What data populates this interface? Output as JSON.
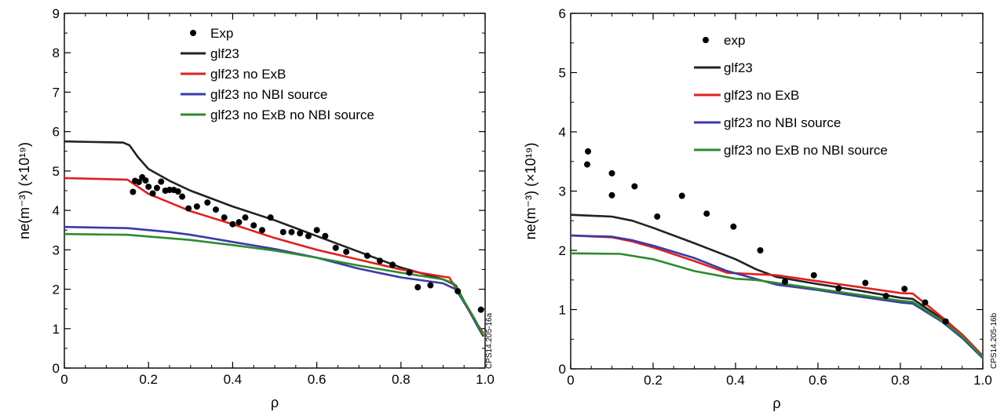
{
  "chart_data": [
    {
      "id": "left",
      "type": "line",
      "xlabel": "ρ",
      "ylabel": "ne(m⁻³) (×10¹⁹)",
      "xlim": [
        0,
        1.0
      ],
      "ylim": [
        0,
        9
      ],
      "xticks": [
        0,
        0.2,
        0.4,
        0.6,
        0.8,
        1.0
      ],
      "xtick_labels": [
        "0",
        "0.2",
        "0.4",
        "0.6",
        "0.8",
        "1.0"
      ],
      "yticks": [
        0,
        1,
        2,
        3,
        4,
        5,
        6,
        7,
        8,
        9
      ],
      "ytick_labels": [
        "0",
        "1",
        "2",
        "3",
        "4",
        "5",
        "6",
        "7",
        "8",
        "9"
      ],
      "legend_position": "top-center",
      "code_label": "CPS14.205-16a",
      "scatter": {
        "name": "Exp",
        "color": "#000000",
        "points": [
          [
            0.163,
            4.47
          ],
          [
            0.168,
            4.75
          ],
          [
            0.177,
            4.72
          ],
          [
            0.185,
            4.84
          ],
          [
            0.193,
            4.76
          ],
          [
            0.2,
            4.6
          ],
          [
            0.21,
            4.43
          ],
          [
            0.22,
            4.57
          ],
          [
            0.23,
            4.73
          ],
          [
            0.24,
            4.5
          ],
          [
            0.25,
            4.52
          ],
          [
            0.26,
            4.52
          ],
          [
            0.27,
            4.48
          ],
          [
            0.28,
            4.35
          ],
          [
            0.295,
            4.05
          ],
          [
            0.315,
            4.1
          ],
          [
            0.34,
            4.2
          ],
          [
            0.36,
            4.02
          ],
          [
            0.38,
            3.82
          ],
          [
            0.4,
            3.65
          ],
          [
            0.415,
            3.7
          ],
          [
            0.43,
            3.82
          ],
          [
            0.45,
            3.62
          ],
          [
            0.47,
            3.5
          ],
          [
            0.49,
            3.82
          ],
          [
            0.52,
            3.45
          ],
          [
            0.54,
            3.45
          ],
          [
            0.56,
            3.42
          ],
          [
            0.58,
            3.35
          ],
          [
            0.6,
            3.5
          ],
          [
            0.62,
            3.35
          ],
          [
            0.645,
            3.05
          ],
          [
            0.67,
            2.95
          ],
          [
            0.72,
            2.85
          ],
          [
            0.75,
            2.72
          ],
          [
            0.78,
            2.62
          ],
          [
            0.82,
            2.42
          ],
          [
            0.84,
            2.05
          ],
          [
            0.87,
            2.1
          ],
          [
            0.935,
            1.95
          ],
          [
            0.99,
            1.48
          ]
        ]
      },
      "series": [
        {
          "name": "glf23",
          "color": "#222222",
          "points": [
            [
              0,
              5.75
            ],
            [
              0.14,
              5.72
            ],
            [
              0.155,
              5.65
            ],
            [
              0.175,
              5.35
            ],
            [
              0.2,
              5.05
            ],
            [
              0.25,
              4.75
            ],
            [
              0.3,
              4.5
            ],
            [
              0.4,
              4.1
            ],
            [
              0.5,
              3.75
            ],
            [
              0.6,
              3.35
            ],
            [
              0.7,
              2.95
            ],
            [
              0.8,
              2.55
            ],
            [
              0.9,
              2.25
            ],
            [
              0.93,
              2.1
            ],
            [
              0.96,
              1.5
            ],
            [
              0.98,
              1.1
            ],
            [
              0.995,
              0.82
            ]
          ]
        },
        {
          "name": "glf23 no ExB",
          "color": "#e02020",
          "points": [
            [
              0,
              4.82
            ],
            [
              0.15,
              4.78
            ],
            [
              0.175,
              4.6
            ],
            [
              0.2,
              4.42
            ],
            [
              0.25,
              4.2
            ],
            [
              0.3,
              3.98
            ],
            [
              0.4,
              3.65
            ],
            [
              0.5,
              3.3
            ],
            [
              0.6,
              3.0
            ],
            [
              0.7,
              2.75
            ],
            [
              0.8,
              2.5
            ],
            [
              0.9,
              2.32
            ],
            [
              0.915,
              2.3
            ],
            [
              0.94,
              1.85
            ],
            [
              0.97,
              1.3
            ],
            [
              0.995,
              0.9
            ]
          ]
        },
        {
          "name": "glf23 no NBI source",
          "color": "#3a3aa8",
          "points": [
            [
              0,
              3.58
            ],
            [
              0.15,
              3.55
            ],
            [
              0.25,
              3.45
            ],
            [
              0.3,
              3.38
            ],
            [
              0.4,
              3.2
            ],
            [
              0.5,
              3.02
            ],
            [
              0.6,
              2.8
            ],
            [
              0.7,
              2.52
            ],
            [
              0.8,
              2.3
            ],
            [
              0.9,
              2.15
            ],
            [
              0.93,
              2.0
            ],
            [
              0.96,
              1.5
            ],
            [
              0.98,
              1.1
            ],
            [
              0.995,
              0.85
            ]
          ]
        },
        {
          "name": "glf23 no ExB no NBI source",
          "color": "#2e8b2e",
          "points": [
            [
              0,
              3.4
            ],
            [
              0.15,
              3.38
            ],
            [
              0.3,
              3.25
            ],
            [
              0.4,
              3.12
            ],
            [
              0.5,
              2.98
            ],
            [
              0.6,
              2.8
            ],
            [
              0.7,
              2.6
            ],
            [
              0.8,
              2.42
            ],
            [
              0.9,
              2.25
            ],
            [
              0.925,
              2.15
            ],
            [
              0.95,
              1.7
            ],
            [
              0.975,
              1.25
            ],
            [
              0.995,
              0.85
            ]
          ]
        }
      ]
    },
    {
      "id": "right",
      "type": "line",
      "xlabel": "ρ",
      "ylabel": "ne(m⁻³) (×10¹⁹)",
      "xlim": [
        0,
        1.0
      ],
      "ylim": [
        0,
        6
      ],
      "xticks": [
        0,
        0.2,
        0.4,
        0.6,
        0.8,
        1.0
      ],
      "xtick_labels": [
        "0",
        "0.2",
        "0.4",
        "0.6",
        "0.8",
        "1.0"
      ],
      "yticks": [
        0,
        1,
        2,
        3,
        4,
        5,
        6
      ],
      "ytick_labels": [
        "0",
        "1",
        "2",
        "3",
        "4",
        "5",
        "6"
      ],
      "legend_position": "top-center",
      "code_label": "CPS14.205-16b",
      "scatter": {
        "name": "exp",
        "color": "#000000",
        "points": [
          [
            0.04,
            3.45
          ],
          [
            0.042,
            3.67
          ],
          [
            0.1,
            2.93
          ],
          [
            0.1,
            3.3
          ],
          [
            0.155,
            3.08
          ],
          [
            0.21,
            2.57
          ],
          [
            0.27,
            2.92
          ],
          [
            0.33,
            2.62
          ],
          [
            0.395,
            2.4
          ],
          [
            0.46,
            2.0
          ],
          [
            0.52,
            1.47
          ],
          [
            0.59,
            1.58
          ],
          [
            0.65,
            1.36
          ],
          [
            0.715,
            1.45
          ],
          [
            0.765,
            1.23
          ],
          [
            0.81,
            1.35
          ],
          [
            0.86,
            1.12
          ],
          [
            0.91,
            0.8
          ]
        ]
      },
      "series": [
        {
          "name": "glf23",
          "color": "#222222",
          "points": [
            [
              0,
              2.6
            ],
            [
              0.1,
              2.57
            ],
            [
              0.15,
              2.5
            ],
            [
              0.2,
              2.38
            ],
            [
              0.3,
              2.12
            ],
            [
              0.4,
              1.85
            ],
            [
              0.45,
              1.68
            ],
            [
              0.5,
              1.55
            ],
            [
              0.6,
              1.43
            ],
            [
              0.7,
              1.32
            ],
            [
              0.8,
              1.2
            ],
            [
              0.83,
              1.18
            ],
            [
              0.9,
              0.85
            ],
            [
              0.95,
              0.55
            ],
            [
              1.0,
              0.2
            ]
          ]
        },
        {
          "name": "glf23 no ExB",
          "color": "#e02020",
          "points": [
            [
              0,
              2.25
            ],
            [
              0.1,
              2.22
            ],
            [
              0.15,
              2.15
            ],
            [
              0.2,
              2.05
            ],
            [
              0.3,
              1.82
            ],
            [
              0.38,
              1.62
            ],
            [
              0.5,
              1.58
            ],
            [
              0.6,
              1.48
            ],
            [
              0.7,
              1.38
            ],
            [
              0.8,
              1.28
            ],
            [
              0.83,
              1.27
            ],
            [
              0.9,
              0.88
            ],
            [
              0.95,
              0.58
            ],
            [
              1.0,
              0.22
            ]
          ]
        },
        {
          "name": "glf23 no NBI source",
          "color": "#3a3aa8",
          "points": [
            [
              0,
              2.25
            ],
            [
              0.1,
              2.23
            ],
            [
              0.15,
              2.17
            ],
            [
              0.2,
              2.08
            ],
            [
              0.3,
              1.87
            ],
            [
              0.38,
              1.65
            ],
            [
              0.5,
              1.42
            ],
            [
              0.6,
              1.33
            ],
            [
              0.7,
              1.22
            ],
            [
              0.8,
              1.12
            ],
            [
              0.83,
              1.1
            ],
            [
              0.9,
              0.8
            ],
            [
              0.95,
              0.52
            ],
            [
              1.0,
              0.18
            ]
          ]
        },
        {
          "name": "glf23 no ExB no NBI source",
          "color": "#2e8b2e",
          "points": [
            [
              0,
              1.95
            ],
            [
              0.12,
              1.94
            ],
            [
              0.2,
              1.85
            ],
            [
              0.3,
              1.65
            ],
            [
              0.4,
              1.52
            ],
            [
              0.45,
              1.5
            ],
            [
              0.5,
              1.45
            ],
            [
              0.6,
              1.35
            ],
            [
              0.7,
              1.25
            ],
            [
              0.8,
              1.15
            ],
            [
              0.83,
              1.13
            ],
            [
              0.9,
              0.82
            ],
            [
              0.95,
              0.55
            ],
            [
              1.0,
              0.2
            ]
          ]
        }
      ]
    }
  ]
}
